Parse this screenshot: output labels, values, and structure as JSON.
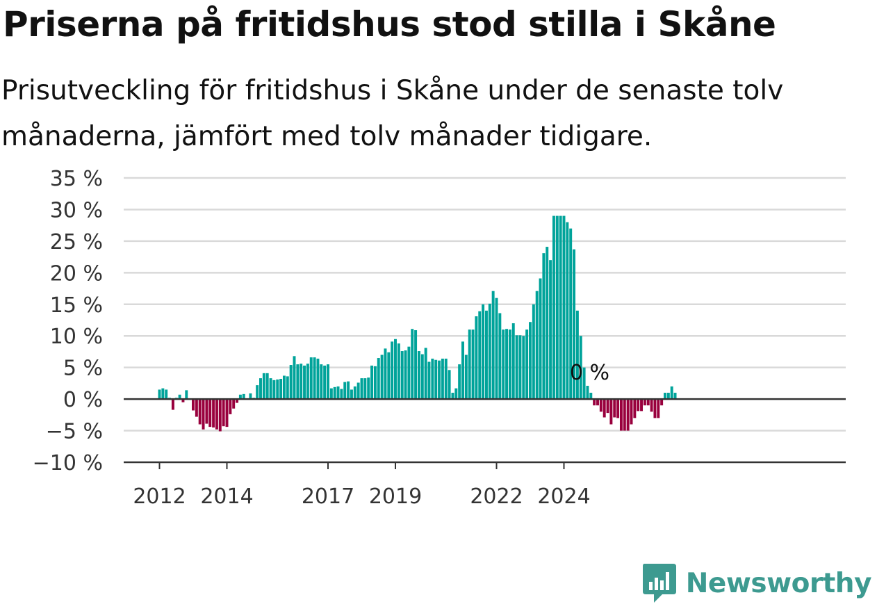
{
  "title": "Priserna på fritidshus stod stilla i Skåne",
  "subtitle": "Prisutveckling för fritidshus i Skåne under de senaste tolv månaderna, jämfört med tolv månader tidigare.",
  "brand": {
    "name": "Newsworthy",
    "color": "#3d9a90"
  },
  "colors": {
    "positive": "#00a39a",
    "negative": "#99003d"
  },
  "chart_data": {
    "type": "bar",
    "title": "Priserna på fritidshus stod stilla i Skåne",
    "xlabel": "",
    "ylabel": "",
    "ylim": [
      -10,
      35
    ],
    "yticks": [
      -10,
      -5,
      0,
      5,
      10,
      15,
      20,
      25,
      30,
      35
    ],
    "ytick_labels": [
      "−10 %",
      "−5 %",
      "0 %",
      "5 %",
      "10 %",
      "15 %",
      "20 %",
      "25 %",
      "30 %",
      "35 %"
    ],
    "xticks": [
      {
        "label": "2012",
        "index": 0
      },
      {
        "label": "2014",
        "index": 20
      },
      {
        "label": "2017",
        "index": 50
      },
      {
        "label": "2019",
        "index": 70
      },
      {
        "label": "2022",
        "index": 100
      },
      {
        "label": "2024",
        "index": 120
      }
    ],
    "grid": true,
    "annotation": {
      "text": "0 %",
      "index": 127
    },
    "values": [
      1.5,
      1.7,
      1.5,
      0.2,
      -1.7,
      0.2,
      0.7,
      -0.5,
      1.4,
      0,
      -1.8,
      -2.8,
      -4,
      -4.8,
      -3.9,
      -4.4,
      -4.5,
      -4.8,
      -5.1,
      -4.3,
      -4.4,
      -2.4,
      -1.5,
      -0.6,
      0.7,
      0.8,
      0.1,
      0.9,
      0.2,
      2.2,
      3.3,
      4.1,
      4.1,
      3.3,
      3,
      3.1,
      3.2,
      3.7,
      3.6,
      5.4,
      6.8,
      5.5,
      5.6,
      5.3,
      5.6,
      6.6,
      6.6,
      6.4,
      5.5,
      5.3,
      5.5,
      1.7,
      1.9,
      2,
      1.6,
      2.7,
      2.8,
      1.5,
      2,
      2.6,
      3.3,
      3.3,
      3.4,
      5.3,
      5.2,
      6.5,
      7,
      8,
      7.4,
      9.1,
      9.5,
      8.8,
      7.6,
      7.7,
      8.3,
      11.1,
      10.9,
      7.6,
      7.1,
      8.1,
      5.9,
      6.4,
      6.2,
      6.1,
      6.4,
      6.4,
      4.6,
      1,
      1.7,
      5.5,
      9.1,
      7,
      11,
      11,
      13.1,
      13.9,
      15,
      14,
      15.1,
      17.1,
      16,
      13.6,
      11,
      11.1,
      11,
      12,
      10.1,
      10.1,
      10,
      11,
      12.2,
      15,
      17.1,
      19.1,
      23.1,
      24.1,
      22,
      29,
      29,
      29,
      29,
      28,
      27,
      23.7,
      14,
      10,
      5,
      2.1,
      1,
      -1,
      -1,
      -2,
      -2.9,
      -2.2,
      -4,
      -2.9,
      -3,
      -5,
      -5,
      -5,
      -4,
      -3,
      -1.9,
      -1.9,
      -1,
      -1,
      -2,
      -3,
      -3,
      -1,
      1,
      1,
      2,
      1
    ]
  }
}
